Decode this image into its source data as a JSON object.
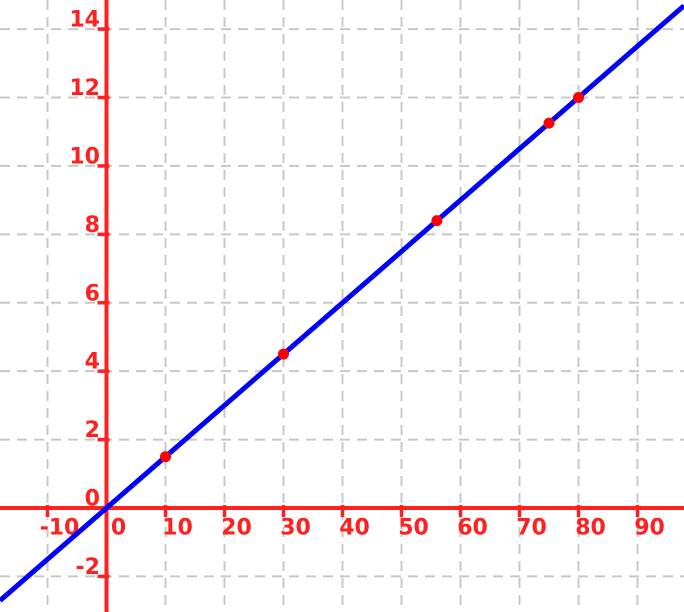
{
  "chart_data": {
    "type": "scatter",
    "title": "",
    "xlabel": "",
    "ylabel": "",
    "grid": true,
    "legend": null,
    "points": [
      {
        "x": 10,
        "y": 1.5
      },
      {
        "x": 30,
        "y": 4.5
      },
      {
        "x": 56,
        "y": 8.4
      },
      {
        "x": 75,
        "y": 11.25
      },
      {
        "x": 80,
        "y": 12
      }
    ],
    "best_fit_line": {
      "slope": 0.15,
      "intercept": 0
    },
    "x_ticks": [
      -10,
      0,
      10,
      20,
      30,
      40,
      50,
      60,
      70,
      80,
      90
    ],
    "y_ticks": [
      -2,
      0,
      2,
      4,
      6,
      8,
      10,
      12,
      14
    ],
    "x_tick_labels": [
      "-10",
      "0",
      "10",
      "20",
      "30",
      "40",
      "50",
      "60",
      "70",
      "80",
      "90"
    ],
    "y_tick_labels": [
      "-2",
      "0",
      "2",
      "4",
      "6",
      "8",
      "10",
      "12",
      "14"
    ],
    "view_xlim": [
      -18.05,
      97.88
    ],
    "view_ylim": [
      -3.04,
      14.85
    ],
    "colors": {
      "axis": "#ff2020",
      "tick_label": "#ff2020",
      "grid": "#c8c8c8",
      "line": "#0000ff",
      "point": "#ff0000",
      "background": "#ffffff"
    }
  }
}
